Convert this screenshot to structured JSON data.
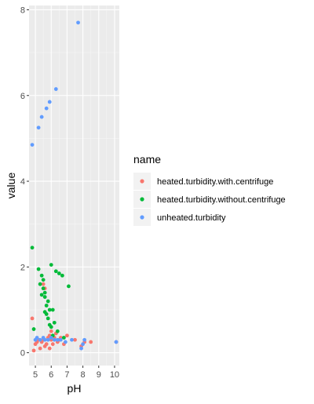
{
  "chart_data": {
    "type": "scatter",
    "title": "",
    "xlabel": "pH",
    "ylabel": "value",
    "xlim": [
      4.6,
      10.3
    ],
    "ylim": [
      -0.3,
      8.1
    ],
    "x_ticks": [
      5,
      6,
      7,
      8,
      9,
      10
    ],
    "y_ticks": [
      0,
      2,
      4,
      6,
      8
    ],
    "x_tick_labels": [
      "5",
      "6",
      "7",
      "8",
      "9",
      "10"
    ],
    "y_tick_labels": [
      "0",
      "2",
      "4",
      "6",
      "8"
    ],
    "grid": true,
    "legend": {
      "title": "name",
      "placement": "right"
    },
    "series": [
      {
        "name": "heated.turbidity.with.centrifuge",
        "color": "#F8766D",
        "points": [
          [
            4.8,
            0.8
          ],
          [
            4.9,
            0.05
          ],
          [
            5.0,
            0.2
          ],
          [
            5.1,
            0.25
          ],
          [
            5.2,
            0.3
          ],
          [
            5.3,
            0.1
          ],
          [
            5.4,
            0.25
          ],
          [
            5.5,
            0.3
          ],
          [
            5.5,
            1.6
          ],
          [
            5.6,
            1.5
          ],
          [
            5.6,
            0.15
          ],
          [
            5.7,
            0.2
          ],
          [
            5.8,
            0.35
          ],
          [
            5.9,
            0.4
          ],
          [
            5.9,
            0.1
          ],
          [
            6.0,
            0.3
          ],
          [
            6.0,
            0.5
          ],
          [
            6.1,
            0.2
          ],
          [
            6.2,
            0.35
          ],
          [
            6.3,
            0.45
          ],
          [
            6.4,
            0.25
          ],
          [
            6.5,
            0.3
          ],
          [
            6.6,
            0.35
          ],
          [
            6.8,
            0.2
          ],
          [
            7.0,
            0.4
          ],
          [
            7.5,
            0.3
          ],
          [
            7.9,
            0.15
          ],
          [
            8.1,
            0.25
          ],
          [
            8.5,
            0.25
          ],
          [
            10.1,
            0.25
          ]
        ]
      },
      {
        "name": "heated.turbidity.without.centrifuge",
        "color": "#00BA38",
        "points": [
          [
            4.8,
            2.45
          ],
          [
            4.9,
            0.55
          ],
          [
            5.2,
            1.95
          ],
          [
            5.3,
            1.6
          ],
          [
            5.4,
            1.8
          ],
          [
            5.5,
            1.7
          ],
          [
            5.5,
            1.5
          ],
          [
            5.6,
            1.4
          ],
          [
            5.6,
            1.3
          ],
          [
            5.7,
            1.1
          ],
          [
            5.7,
            0.9
          ],
          [
            5.8,
            1.2
          ],
          [
            5.8,
            0.8
          ],
          [
            5.9,
            1.0
          ],
          [
            6.0,
            2.05
          ],
          [
            6.0,
            0.6
          ],
          [
            6.1,
            1.0
          ],
          [
            6.2,
            0.7
          ],
          [
            6.3,
            1.9
          ],
          [
            6.4,
            0.5
          ],
          [
            6.5,
            1.85
          ],
          [
            6.7,
            1.8
          ],
          [
            6.8,
            0.35
          ],
          [
            7.1,
            1.55
          ],
          [
            5.4,
            1.35
          ],
          [
            5.9,
            0.65
          ],
          [
            6.1,
            0.4
          ],
          [
            5.6,
            0.95
          ]
        ]
      },
      {
        "name": "unheated.turbidity",
        "color": "#619CFF",
        "points": [
          [
            4.8,
            4.85
          ],
          [
            5.2,
            5.25
          ],
          [
            5.4,
            5.5
          ],
          [
            5.7,
            5.7
          ],
          [
            5.9,
            5.85
          ],
          [
            6.3,
            6.15
          ],
          [
            7.7,
            7.7
          ],
          [
            5.0,
            0.3
          ],
          [
            5.1,
            0.35
          ],
          [
            5.3,
            0.3
          ],
          [
            5.5,
            0.35
          ],
          [
            5.6,
            0.3
          ],
          [
            5.8,
            0.3
          ],
          [
            6.0,
            0.35
          ],
          [
            6.2,
            0.3
          ],
          [
            6.4,
            0.3
          ],
          [
            6.6,
            0.3
          ],
          [
            6.9,
            0.25
          ],
          [
            7.3,
            0.3
          ],
          [
            7.9,
            0.1
          ],
          [
            8.0,
            0.2
          ],
          [
            8.1,
            0.3
          ],
          [
            10.1,
            0.25
          ]
        ]
      }
    ]
  }
}
